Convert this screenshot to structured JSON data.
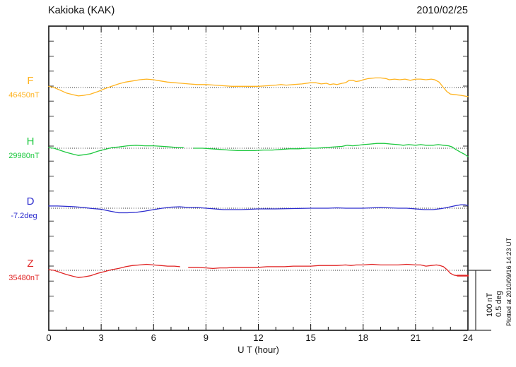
{
  "header": {
    "title": "Kakioka (KAK)",
    "date": "2010/02/25"
  },
  "axis": {
    "x_label": "U T (hour)"
  },
  "side": {
    "plotted_at": "Plotted at 2010/09/16 14:23 UT",
    "scale_labels": [
      "100 nT",
      "0.5 deg"
    ]
  },
  "chart_data": {
    "type": "line",
    "title": "Kakioka (KAK)",
    "subtitle": "2010/02/25",
    "xlabel": "U T (hour)",
    "x_range": [
      0,
      24
    ],
    "x_ticks": [
      0,
      3,
      6,
      9,
      12,
      15,
      18,
      21,
      24
    ],
    "x_minor_tick_step": 1,
    "grid_hours": [
      3,
      6,
      9,
      12,
      15,
      18,
      21
    ],
    "grid": "vertical-dotted",
    "legend_position": "left-margin",
    "scale_bar": {
      "labels": [
        "100 nT",
        "0.5 deg"
      ],
      "span_nT": 100,
      "span_deg": 0.5
    },
    "values_are": "offset from baseline_value, in series unit",
    "series": [
      {
        "key": "F",
        "label": "F",
        "baseline_label": "46450nT",
        "baseline_value": 46450,
        "unit": "nT",
        "color": "#FFB421",
        "segments": [
          {
            "w": 1.3,
            "pts": [
              [
                0,
                2
              ],
              [
                0.3,
                0
              ],
              [
                0.7,
                -5
              ],
              [
                1,
                -9
              ],
              [
                1.4,
                -12
              ],
              [
                1.7,
                -14
              ],
              [
                2,
                -13
              ],
              [
                2.4,
                -11
              ],
              [
                2.8,
                -7
              ],
              [
                3.2,
                -2
              ],
              [
                3.6,
                2
              ],
              [
                4,
                6
              ],
              [
                4.4,
                9
              ],
              [
                4.8,
                11
              ],
              [
                5.2,
                13
              ],
              [
                5.6,
                14
              ],
              [
                6,
                13
              ],
              [
                6.4,
                11
              ],
              [
                6.8,
                9
              ],
              [
                7.2,
                8
              ],
              [
                7.6,
                7
              ],
              [
                8,
                6
              ],
              [
                8.5,
                5
              ],
              [
                9,
                5
              ],
              [
                9.5,
                4
              ],
              [
                10,
                3
              ],
              [
                10.5,
                2
              ],
              [
                11,
                2
              ],
              [
                11.5,
                2
              ],
              [
                12,
                2
              ],
              [
                12.5,
                3
              ],
              [
                13,
                4
              ],
              [
                13.3,
                5
              ],
              [
                13.6,
                4
              ],
              [
                14,
                5
              ],
              [
                14.5,
                6
              ],
              [
                15,
                8
              ],
              [
                15.3,
                8
              ],
              [
                15.6,
                6
              ],
              [
                15.9,
                7
              ],
              [
                16.1,
                5
              ],
              [
                16.3,
                6
              ],
              [
                16.5,
                5
              ],
              [
                16.8,
                7
              ],
              [
                17,
                8
              ],
              [
                17.2,
                12
              ],
              [
                17.4,
                12
              ],
              [
                17.6,
                10
              ],
              [
                17.8,
                11
              ],
              [
                18,
                13
              ],
              [
                18.3,
                15
              ],
              [
                18.7,
                16
              ],
              [
                19,
                16
              ],
              [
                19.3,
                15
              ],
              [
                19.5,
                13
              ],
              [
                19.8,
                14
              ],
              [
                20.1,
                13
              ],
              [
                20.4,
                14
              ],
              [
                20.7,
                12
              ],
              [
                21,
                14
              ],
              [
                21.3,
                14
              ],
              [
                21.6,
                13
              ],
              [
                21.9,
                14
              ],
              [
                22.1,
                13
              ],
              [
                22.35,
                9
              ],
              [
                22.6,
                0
              ],
              [
                22.8,
                -7
              ],
              [
                23,
                -11
              ],
              [
                23.3,
                -12
              ],
              [
                23.6,
                -13
              ],
              [
                24,
                -15
              ]
            ]
          }
        ]
      },
      {
        "key": "H",
        "label": "H",
        "baseline_label": "29980nT",
        "baseline_value": 29980,
        "unit": "nT",
        "color": "#1DC83F",
        "segments": [
          {
            "w": 1.3,
            "pts": [
              [
                0,
                1
              ],
              [
                0.3,
                0
              ],
              [
                0.7,
                -4
              ],
              [
                1,
                -7
              ],
              [
                1.4,
                -10
              ],
              [
                1.7,
                -12
              ],
              [
                2,
                -11
              ],
              [
                2.4,
                -9
              ],
              [
                2.8,
                -5
              ],
              [
                3.2,
                -2
              ],
              [
                3.6,
                1
              ],
              [
                4,
                2
              ],
              [
                4.5,
                4
              ],
              [
                5,
                5
              ],
              [
                5.5,
                4
              ],
              [
                6,
                4
              ],
              [
                6.5,
                3
              ],
              [
                7,
                2
              ],
              [
                7.4,
                1
              ],
              [
                7.7,
                1
              ]
            ]
          },
          {
            "w": 1.3,
            "pts": [
              [
                8.3,
                0
              ],
              [
                8.8,
                0
              ],
              [
                9.3,
                -1
              ],
              [
                9.8,
                -2
              ],
              [
                10.3,
                -3
              ],
              [
                10.8,
                -4
              ],
              [
                11.3,
                -4
              ],
              [
                11.8,
                -4
              ],
              [
                12.3,
                -3
              ],
              [
                12.8,
                -3
              ],
              [
                13.3,
                -2
              ],
              [
                13.8,
                -1
              ],
              [
                14.3,
                -1
              ],
              [
                14.8,
                0
              ],
              [
                15.3,
                0
              ],
              [
                15.8,
                1
              ],
              [
                16.3,
                2
              ],
              [
                16.8,
                3
              ],
              [
                17.1,
                5
              ],
              [
                17.4,
                4
              ],
              [
                17.7,
                5
              ],
              [
                18,
                6
              ],
              [
                18.4,
                7
              ],
              [
                18.8,
                8
              ],
              [
                19.2,
                8
              ],
              [
                19.6,
                7
              ],
              [
                20,
                6
              ],
              [
                20.3,
                5
              ],
              [
                20.6,
                6
              ],
              [
                21,
                5
              ],
              [
                21.3,
                6
              ],
              [
                21.6,
                5
              ],
              [
                22,
                5
              ],
              [
                22.3,
                6
              ],
              [
                22.6,
                5
              ],
              [
                22.9,
                4
              ],
              [
                23.1,
                2
              ],
              [
                23.3,
                -2
              ],
              [
                23.6,
                -7
              ],
              [
                23.8,
                -10
              ],
              [
                24,
                -14
              ]
            ]
          }
        ]
      },
      {
        "key": "D",
        "label": "D",
        "baseline_label": "-7.2deg",
        "baseline_value": -7.2,
        "unit": "deg",
        "color": "#2B2BCE",
        "segments": [
          {
            "w": 1.3,
            "pts": [
              [
                0,
                0.018
              ],
              [
                0.5,
                0.018
              ],
              [
                1,
                0.015
              ],
              [
                1.5,
                0.012
              ],
              [
                2,
                0.006
              ],
              [
                2.5,
                -0.003
              ],
              [
                3,
                -0.009
              ],
              [
                3.5,
                -0.024
              ],
              [
                4,
                -0.038
              ],
              [
                4.5,
                -0.038
              ],
              [
                5,
                -0.035
              ],
              [
                5.5,
                -0.024
              ],
              [
                6,
                -0.012
              ],
              [
                6.5,
                0
              ],
              [
                7,
                0.009
              ],
              [
                7.5,
                0.012
              ],
              [
                8,
                0.006
              ],
              [
                8.5,
                0.006
              ],
              [
                9,
                0
              ],
              [
                9.5,
                -0.006
              ],
              [
                10,
                -0.012
              ],
              [
                10.5,
                -0.012
              ],
              [
                11,
                -0.012
              ],
              [
                11.5,
                -0.009
              ],
              [
                12,
                -0.006
              ],
              [
                13,
                -0.006
              ],
              [
                14,
                -0.003
              ],
              [
                15,
                0
              ],
              [
                16,
                0
              ],
              [
                16.5,
                0.003
              ],
              [
                17,
                0
              ],
              [
                18,
                0
              ],
              [
                18.5,
                0.003
              ],
              [
                19,
                0.006
              ],
              [
                19.5,
                0.003
              ],
              [
                20,
                0
              ],
              [
                20.5,
                0
              ],
              [
                21,
                -0.006
              ],
              [
                21.5,
                -0.012
              ],
              [
                22,
                -0.012
              ],
              [
                22.5,
                -0.003
              ],
              [
                23,
                0.012
              ],
              [
                23.3,
                0.021
              ],
              [
                23.6,
                0.029
              ],
              [
                23.8,
                0.029
              ],
              [
                24,
                0.024
              ]
            ]
          }
        ]
      },
      {
        "key": "Z",
        "label": "Z",
        "baseline_label": "35480nT",
        "baseline_value": 35480,
        "unit": "nT",
        "color": "#E02424",
        "segments": [
          {
            "w": 1.3,
            "pts": [
              [
                0,
                1
              ],
              [
                0.3,
                0
              ],
              [
                0.7,
                -4
              ],
              [
                1,
                -7
              ],
              [
                1.4,
                -10
              ],
              [
                1.7,
                -12
              ],
              [
                2,
                -11
              ],
              [
                2.4,
                -9
              ],
              [
                2.8,
                -5
              ],
              [
                3.2,
                -2
              ],
              [
                3.6,
                1
              ],
              [
                4,
                3
              ],
              [
                4.4,
                6
              ],
              [
                4.8,
                8
              ],
              [
                5.2,
                9
              ],
              [
                5.6,
                10
              ],
              [
                6,
                9
              ],
              [
                6.4,
                8
              ],
              [
                6.8,
                7
              ],
              [
                7.2,
                7
              ],
              [
                7.5,
                6
              ]
            ]
          },
          {
            "w": 1.3,
            "pts": [
              [
                8,
                5
              ],
              [
                8.5,
                5
              ],
              [
                9,
                4
              ],
              [
                9.4,
                3
              ],
              [
                9.8,
                4
              ],
              [
                10.2,
                4
              ],
              [
                10.6,
                5
              ],
              [
                11,
                5
              ],
              [
                11.5,
                5
              ],
              [
                12,
                5
              ],
              [
                12.5,
                6
              ],
              [
                13,
                6
              ],
              [
                13.5,
                6
              ],
              [
                14,
                7
              ],
              [
                14.5,
                7
              ],
              [
                15,
                7
              ],
              [
                15.5,
                8
              ],
              [
                16,
                8
              ],
              [
                16.5,
                8
              ],
              [
                17,
                9
              ],
              [
                17.3,
                8
              ],
              [
                17.6,
                9
              ],
              [
                18,
                9
              ],
              [
                18.5,
                10
              ],
              [
                19,
                9
              ],
              [
                19.5,
                9
              ],
              [
                20,
                9
              ],
              [
                20.5,
                10
              ],
              [
                21,
                9
              ],
              [
                21.3,
                9
              ],
              [
                21.6,
                7
              ],
              [
                21.9,
                8
              ],
              [
                22.2,
                9
              ],
              [
                22.4,
                8
              ],
              [
                22.6,
                6
              ],
              [
                22.8,
                1
              ],
              [
                23,
                -5
              ],
              [
                23.2,
                -8
              ],
              [
                23.4,
                -9
              ]
            ]
          },
          {
            "w": 2.4,
            "pts": [
              [
                23.4,
                -9
              ],
              [
                24,
                -9
              ]
            ]
          }
        ]
      }
    ]
  }
}
